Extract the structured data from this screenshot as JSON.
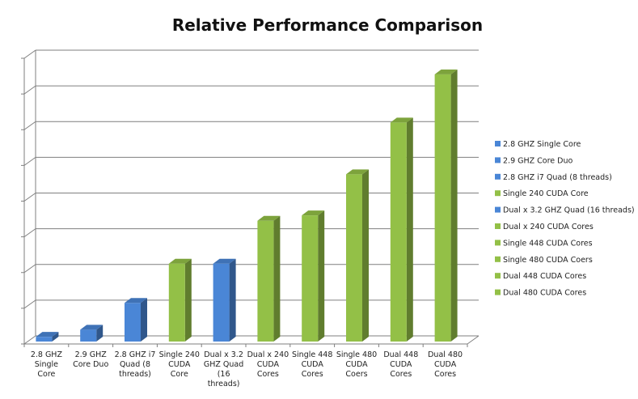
{
  "chart_data": {
    "type": "bar",
    "title": "Relative Performance Comparison",
    "xlabel": "",
    "ylabel": "",
    "ylim": [
      0,
      8
    ],
    "grid": true,
    "legend_position": "right",
    "categories": [
      "2.8 GHZ Single Core",
      "2.9 GHZ Core Duo",
      "2.8 GHZ i7 Quad (8 threads)",
      "Single 240 CUDA Core",
      "Dual x 3.2 GHZ Quad (16 threads)",
      "Dual x 240 CUDA Cores",
      "Single 448 CUDA Cores",
      "Single 480 CUDA Coers",
      "Dual 448 CUDA Cores",
      "Dual 480 CUDA Cores"
    ],
    "category_label_lines": [
      [
        "2.8 GHZ",
        "Single",
        "Core"
      ],
      [
        "2.9 GHZ",
        "Core Duo"
      ],
      [
        "2.8 GHZ i7",
        "Quad (8",
        "threads)"
      ],
      [
        "Single 240",
        "CUDA",
        "Core"
      ],
      [
        "Dual x  3.2",
        "GHZ Quad",
        "(16",
        "threads)"
      ],
      [
        "Dual x 240",
        "CUDA",
        "Cores"
      ],
      [
        "Single  448",
        "CUDA",
        "Cores"
      ],
      [
        "Single 480",
        "CUDA",
        "Coers"
      ],
      [
        "Dual  448",
        "CUDA",
        "Cores"
      ],
      [
        "Dual  480",
        "CUDA",
        "Cores"
      ]
    ],
    "values": [
      0.2,
      0.4,
      1.15,
      2.25,
      2.25,
      3.45,
      3.6,
      4.75,
      6.2,
      7.55
    ],
    "series": [
      {
        "name": "2.8 GHZ Single Core",
        "color": "#4a86d6"
      },
      {
        "name": "2.9 GHZ Core Duo",
        "color": "#4a86d6"
      },
      {
        "name": "2.8 GHZ i7 Quad (8 threads)",
        "color": "#4a86d6"
      },
      {
        "name": "Single 240 CUDA Core",
        "color": "#93c047"
      },
      {
        "name": "Dual x  3.2 GHZ Quad (16 threads)",
        "color": "#4a86d6"
      },
      {
        "name": "Dual x 240 CUDA Cores",
        "color": "#93c047"
      },
      {
        "name": "Single  448 CUDA Cores",
        "color": "#93c047"
      },
      {
        "name": "Single 480 CUDA Coers",
        "color": "#93c047"
      },
      {
        "name": "Dual  448 CUDA Cores",
        "color": "#93c047"
      },
      {
        "name": "Dual  480 CUDA Cores",
        "color": "#93c047"
      }
    ]
  }
}
